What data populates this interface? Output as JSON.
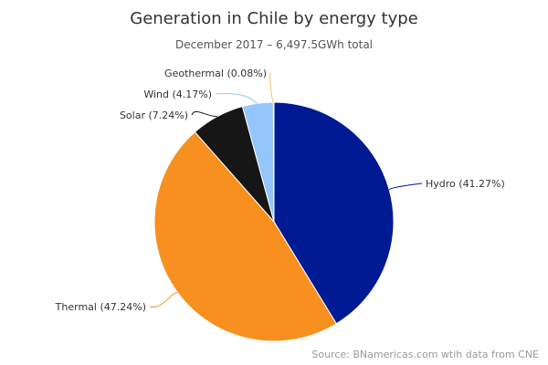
{
  "chart_data": {
    "type": "pie",
    "title": "Generation in Chile by energy type",
    "subtitle": "December 2017 – 6,497.5GWh total",
    "credit": "Source: BNamericas.com wtih data from CNE",
    "start_angle_deg": 0,
    "slices": [
      {
        "name": "Hydro",
        "value": 41.27,
        "label": "Hydro (41.27%)",
        "color": "#001a94"
      },
      {
        "name": "Thermal",
        "value": 47.24,
        "label": "Thermal (47.24%)",
        "color": "#f7901e"
      },
      {
        "name": "Solar",
        "value": 7.24,
        "label": "Solar (7.24%)",
        "color": "#161616"
      },
      {
        "name": "Wind",
        "value": 4.17,
        "label": "Wind (4.17%)",
        "color": "#94c6fa"
      },
      {
        "name": "Geothermal",
        "value": 0.08,
        "label": "Geothermal (0.08%)",
        "color": "#f7c25c"
      }
    ],
    "connector_color": "#333333"
  }
}
